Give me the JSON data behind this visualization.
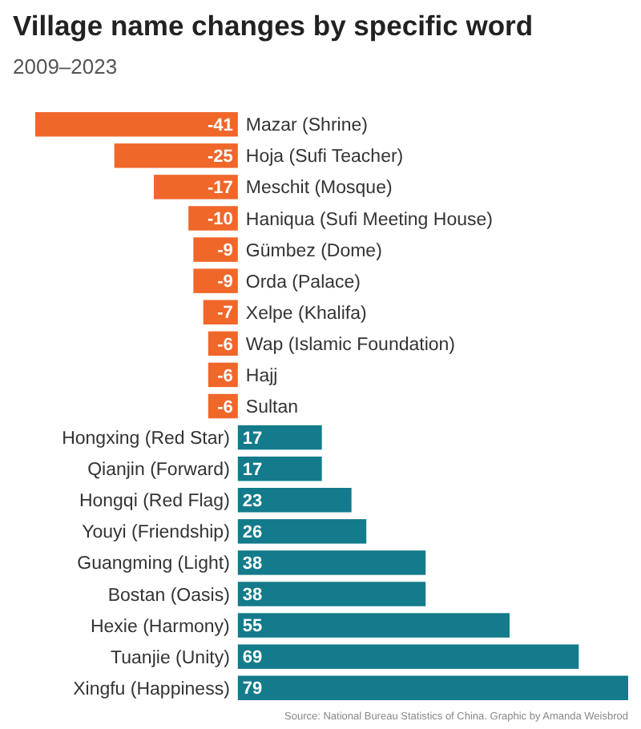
{
  "chart_data": {
    "type": "bar",
    "orientation": "horizontal",
    "title": "Village name changes by specific word",
    "subtitle": "2009–2023",
    "categories": [
      "Mazar (Shrine)",
      "Hoja (Sufi Teacher)",
      "Meschit (Mosque)",
      "Haniqua (Sufi Meeting House)",
      "Gümbez (Dome)",
      "Orda (Palace)",
      "Xelpe (Khalifa)",
      "Wap (Islamic Foundation)",
      "Hajj",
      "Sultan",
      "Hongxing (Red Star)",
      "Qianjin (Forward)",
      "Hongqi (Red Flag)",
      "Youyi (Friendship)",
      "Guangming (Light)",
      "Bostan (Oasis)",
      "Hexie (Harmony)",
      "Tuanjie (Unity)",
      "Xingfu (Happiness)"
    ],
    "values": [
      -41,
      -25,
      -17,
      -10,
      -9,
      -9,
      -7,
      -6,
      -6,
      -6,
      17,
      17,
      23,
      26,
      38,
      38,
      55,
      69,
      79
    ],
    "colors": [
      "#f0672a",
      "#f0672a",
      "#f0672a",
      "#f0672a",
      "#f0672a",
      "#f0672a",
      "#f0672a",
      "#f0672a",
      "#f0672a",
      "#f0672a",
      "#137b8b",
      "#137b8b",
      "#137b8b",
      "#137b8b",
      "#137b8b",
      "#137b8b",
      "#137b8b",
      "#137b8b",
      "#137b8b"
    ],
    "data_labels": true,
    "annotations": [
      "Source: National Bureau Statistics of China. Graphic by Amanda Weisbrod"
    ]
  }
}
